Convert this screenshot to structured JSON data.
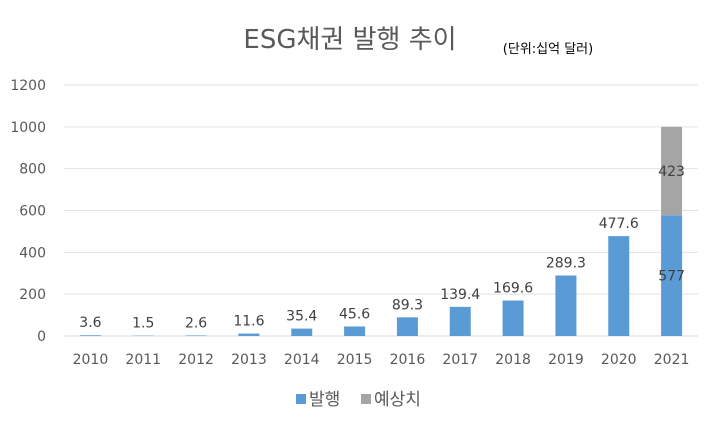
{
  "chart_data": {
    "type": "bar",
    "stacked": true,
    "title": "ESG채권 발행 추이",
    "unit_note": "(단위:십억 달러)",
    "categories": [
      "2010",
      "2011",
      "2012",
      "2013",
      "2014",
      "2015",
      "2016",
      "2017",
      "2018",
      "2019",
      "2020",
      "2021"
    ],
    "series": [
      {
        "name": "발행",
        "color": "#5B9BD5",
        "values": [
          3.6,
          1.5,
          2.6,
          11.6,
          35.4,
          45.6,
          89.3,
          139.4,
          169.6,
          289.3,
          477.6,
          577
        ]
      },
      {
        "name": "예상치",
        "color": "#A5A5A5",
        "values": [
          null,
          null,
          null,
          null,
          null,
          null,
          null,
          null,
          null,
          null,
          null,
          423
        ]
      }
    ],
    "ylim": [
      0,
      1200
    ],
    "yticks": [
      0,
      200,
      400,
      600,
      800,
      1000,
      1200
    ],
    "grid": true,
    "legend_position": "bottom"
  }
}
